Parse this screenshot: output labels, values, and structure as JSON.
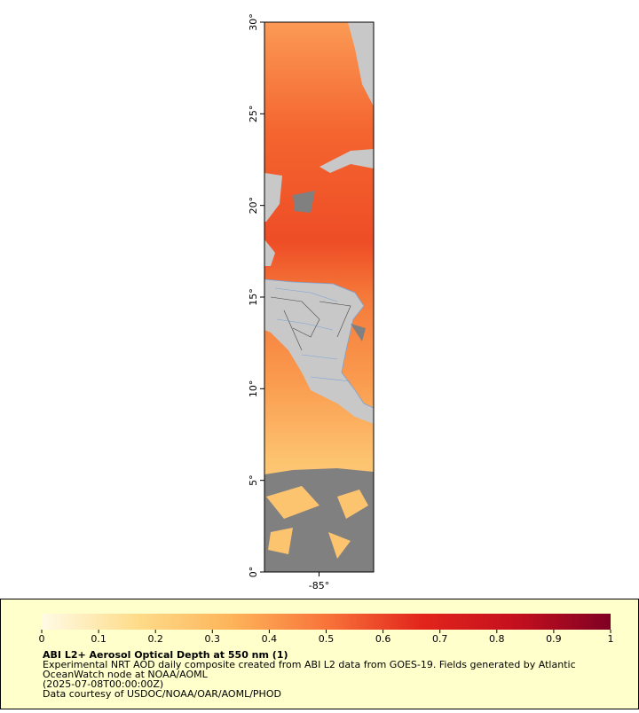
{
  "chart_data": {
    "type": "map",
    "title": "ABI L2+ Aerosol Optical Depth at 550 nm (1)",
    "caption": [
      "Experimental NRT AOD daily composite created from ABI L2 data from GOES-19. Fields generated by Atlantic",
      "OceanWatch node at NOAA/AOML",
      "(2025-07-08T00:00:00Z)",
      "Data courtesy of USDOC/NOAA/OAR/AOML/PHOD"
    ],
    "xlim": [
      -88,
      -82
    ],
    "xticks": [
      {
        "value": -85,
        "label": "-85°"
      }
    ],
    "ylim": [
      0,
      30
    ],
    "yticks": [
      {
        "value": 0,
        "label": "0°"
      },
      {
        "value": 5,
        "label": "5°"
      },
      {
        "value": 10,
        "label": "10°"
      },
      {
        "value": 15,
        "label": "15°"
      },
      {
        "value": 20,
        "label": "20°"
      },
      {
        "value": 25,
        "label": "25°"
      },
      {
        "value": 30,
        "label": "30°"
      }
    ],
    "colorbar": {
      "lim": [
        0,
        1
      ],
      "ticks": [
        0,
        0.1,
        0.2,
        0.3,
        0.4,
        0.5,
        0.6,
        0.7,
        0.8,
        0.9,
        1
      ],
      "colors": [
        "#fffbe6",
        "#fedc8a",
        "#fdb45a",
        "#f8743a",
        "#e2251c",
        "#c4101e",
        "#7f0024"
      ]
    }
  }
}
